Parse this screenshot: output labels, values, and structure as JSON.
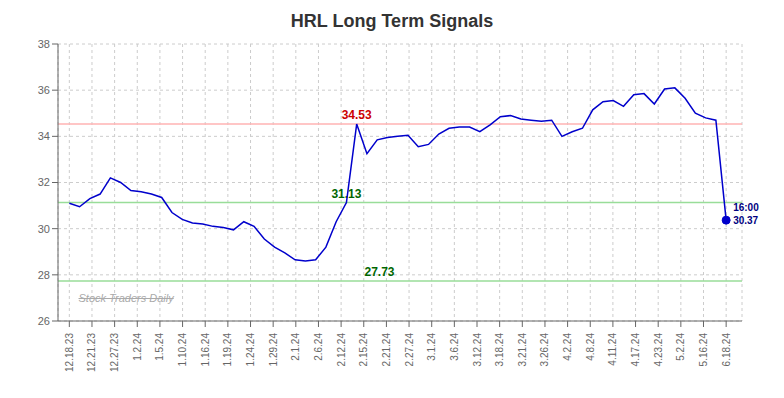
{
  "chart_data": {
    "type": "line",
    "title": "HRL Long Term Signals",
    "watermark": "Stock Traders Daily",
    "color": "#0000cc",
    "grid": true,
    "x": [
      0,
      0.453125,
      0.90625,
      1.359375,
      1.8125,
      2.265625,
      2.71875,
      3.171875,
      3.625,
      4.078125,
      4.53125,
      4.984375,
      5.4375,
      5.890625,
      6.34375,
      6.796875,
      7.25,
      7.703125,
      8.15625,
      8.609375,
      9.0625,
      9.515625,
      9.96875,
      10.421875,
      10.875,
      11.328125,
      11.78125,
      12.234375,
      12.6875,
      13.140625,
      13.59375,
      14.046875,
      14.5,
      14.953125,
      15.40625,
      15.859375,
      16.3125,
      16.765625,
      17.21875,
      17.671875,
      18.125,
      18.578125,
      19.03125,
      19.484375,
      19.9375,
      20.390625,
      20.84375,
      21.296875,
      21.75,
      22.203125,
      22.65625,
      23.109375,
      23.5625,
      24.015625,
      24.46875,
      24.921875,
      25.375,
      25.828125,
      26.28125,
      26.734375,
      27.1875,
      27.640625,
      28.09375,
      28.546875,
      29
    ],
    "values": [
      31.1,
      30.95,
      31.3,
      31.5,
      32.2,
      32.0,
      31.65,
      31.6,
      31.5,
      31.35,
      30.7,
      30.4,
      30.25,
      30.2,
      30.1,
      30.05,
      29.95,
      30.3,
      30.1,
      29.55,
      29.2,
      28.95,
      28.65,
      28.6,
      28.65,
      29.2,
      30.3,
      31.13,
      34.53,
      33.25,
      33.85,
      33.95,
      34.0,
      34.05,
      33.55,
      33.65,
      34.1,
      34.35,
      34.4,
      34.4,
      34.2,
      34.5,
      34.85,
      34.9,
      34.75,
      34.7,
      34.65,
      34.7,
      34.0,
      34.2,
      34.35,
      35.15,
      35.5,
      35.55,
      35.3,
      35.8,
      35.85,
      35.4,
      36.05,
      36.1,
      35.65,
      35.0,
      34.8,
      34.7,
      30.37
    ],
    "xlim": [
      -0.5,
      29.7
    ],
    "xticks": [
      {
        "value": 0,
        "label": "12.18.23"
      },
      {
        "value": 1,
        "label": "12.21.23"
      },
      {
        "value": 2,
        "label": "12.27.23"
      },
      {
        "value": 3,
        "label": "1.2.24"
      },
      {
        "value": 4,
        "label": "1.5.24"
      },
      {
        "value": 5,
        "label": "1.10.24"
      },
      {
        "value": 6,
        "label": "1.16.24"
      },
      {
        "value": 7,
        "label": "1.19.24"
      },
      {
        "value": 8,
        "label": "1.24.24"
      },
      {
        "value": 9,
        "label": "1.29.24"
      },
      {
        "value": 10,
        "label": "2.1.24"
      },
      {
        "value": 11,
        "label": "2.6.24"
      },
      {
        "value": 12,
        "label": "2.12.24"
      },
      {
        "value": 13,
        "label": "2.15.24"
      },
      {
        "value": 14,
        "label": "2.21.24"
      },
      {
        "value": 15,
        "label": "2.27.24"
      },
      {
        "value": 16,
        "label": "3.1.24"
      },
      {
        "value": 17,
        "label": "3.6.24"
      },
      {
        "value": 18,
        "label": "3.12.24"
      },
      {
        "value": 19,
        "label": "3.18.24"
      },
      {
        "value": 20,
        "label": "3.21.24"
      },
      {
        "value": 21,
        "label": "3.26.24"
      },
      {
        "value": 22,
        "label": "4.2.24"
      },
      {
        "value": 23,
        "label": "4.8.24"
      },
      {
        "value": 24,
        "label": "4.11.24"
      },
      {
        "value": 25,
        "label": "4.17.24"
      },
      {
        "value": 26,
        "label": "4.23.24"
      },
      {
        "value": 27,
        "label": "5.2.24"
      },
      {
        "value": 28,
        "label": "5.16.24"
      },
      {
        "value": 29,
        "label": "6.18.24"
      }
    ],
    "ylim": [
      26,
      38
    ],
    "yticks": [
      26,
      28,
      30,
      32,
      34,
      36,
      38
    ],
    "reference_lines": [
      {
        "y": 34.53,
        "color": "#ffb3b3",
        "label": "34.53",
        "label_color": "#cc0000"
      },
      {
        "y": 31.13,
        "color": "#99dd99",
        "label": "31.13",
        "label_color": "#006600"
      },
      {
        "y": 27.73,
        "color": "#99dd99",
        "label": "27.73",
        "label_color": "#006600"
      }
    ],
    "last_point": {
      "x": 29,
      "y": 30.37,
      "color": "#0000cc",
      "labels": [
        {
          "text": "16:00",
          "color": "#000080"
        },
        {
          "text": "30.37",
          "color": "#000080"
        }
      ]
    }
  }
}
